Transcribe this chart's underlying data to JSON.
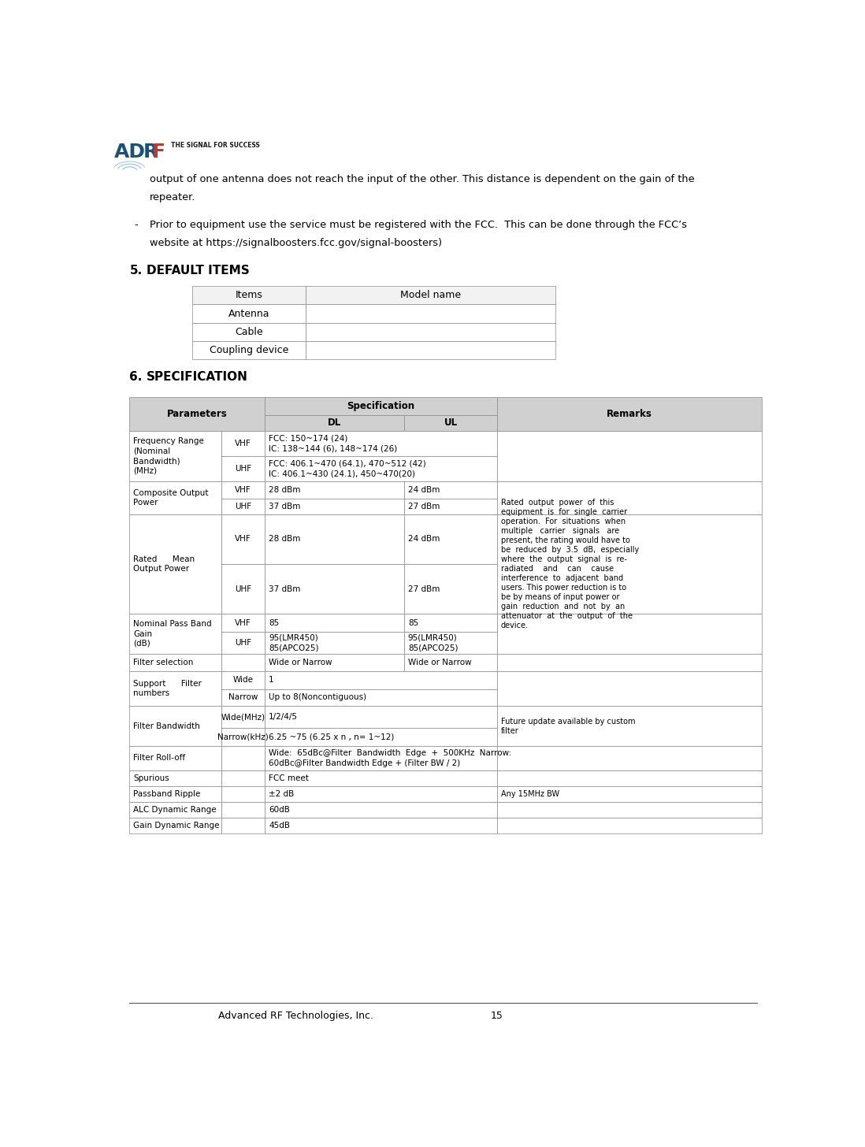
{
  "page_width": 10.98,
  "page_height": 14.56,
  "bg_color": "#ffffff",
  "footer_company": "Advanced RF Technologies, Inc.",
  "footer_page": "15",
  "intro_line1": "output of one antenna does not reach the input of the other. This distance is dependent on the gain of the",
  "intro_line2": "repeater.",
  "bullet_line1": "Prior to equipment use the service must be registered with the FCC.  This can be done through the FCC’s",
  "bullet_line2": "website at https://signalboosters.fcc.gov/signal-boosters)",
  "sec5_num": "5.",
  "sec5_title": "DEFAULT ITEMS",
  "sec6_num": "6.",
  "sec6_title": "SPECIFICATION",
  "di_headers": [
    "Items",
    "Model name"
  ],
  "di_rows": [
    "Antenna",
    "Cable",
    "Coupling device"
  ],
  "gray": "#d0d0d0",
  "white": "#ffffff",
  "border": "#888888",
  "remarks_text": "Rated  output  power  of  this\nequipment  is  for  single  carrier\noperation.  For  situations  when\nmultiple   carrier   signals   are\npresent, the rating would have to\nbe  reduced  by  3.5  dB,  especially\nwhere  the  output  signal  is  re-\nradiated    and    can    cause\ninterference  to  adjacent  band\nusers. This power reduction is to\nbe by means of input power or\ngain  reduction  and  not  by  an\nattenuator  at  the  output  of  the\ndevice."
}
